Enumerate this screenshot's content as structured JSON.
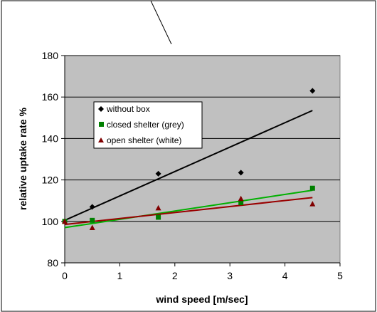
{
  "colors": {
    "plot_background": "#c0c0c0",
    "gridline": "#000000",
    "without_box": "#000000",
    "closed_shelter": "#008000",
    "open_shelter": "#800000",
    "closed_trend": "#00b000",
    "open_trend": "#990000"
  },
  "chart_data": {
    "type": "scatter",
    "title": "",
    "xlabel": "wind speed [m/sec]",
    "ylabel": "relative uptake rate %",
    "xlim": [
      0,
      5
    ],
    "ylim": [
      80,
      180
    ],
    "xticks": [
      "0",
      "1",
      "2",
      "3",
      "4",
      "5"
    ],
    "yticks": [
      "80",
      "100",
      "120",
      "140",
      "160",
      "180"
    ],
    "grid": "horizontal",
    "legend": "upper-left inside plot",
    "series": [
      {
        "name": "without box",
        "marker": "diamond",
        "points": [
          [
            0,
            100
          ],
          [
            0.5,
            107
          ],
          [
            1.7,
            123
          ],
          [
            3.2,
            123.5
          ],
          [
            4.5,
            163
          ]
        ],
        "trendline": [
          [
            0,
            100.5
          ],
          [
            4.5,
            153.5
          ]
        ]
      },
      {
        "name": "closed shelter (grey)",
        "marker": "square",
        "points": [
          [
            0,
            100
          ],
          [
            0.5,
            100.5
          ],
          [
            1.7,
            102
          ],
          [
            3.2,
            109
          ],
          [
            4.5,
            116
          ]
        ],
        "trendline": [
          [
            0,
            97
          ],
          [
            4.5,
            115
          ]
        ]
      },
      {
        "name": "open shelter (white)",
        "marker": "triangle",
        "points": [
          [
            0,
            100
          ],
          [
            0.5,
            97
          ],
          [
            1.7,
            106.5
          ],
          [
            3.2,
            111
          ],
          [
            4.5,
            108.5
          ]
        ],
        "trendline": [
          [
            0,
            98.5
          ],
          [
            4.5,
            111.5
          ]
        ]
      }
    ]
  }
}
